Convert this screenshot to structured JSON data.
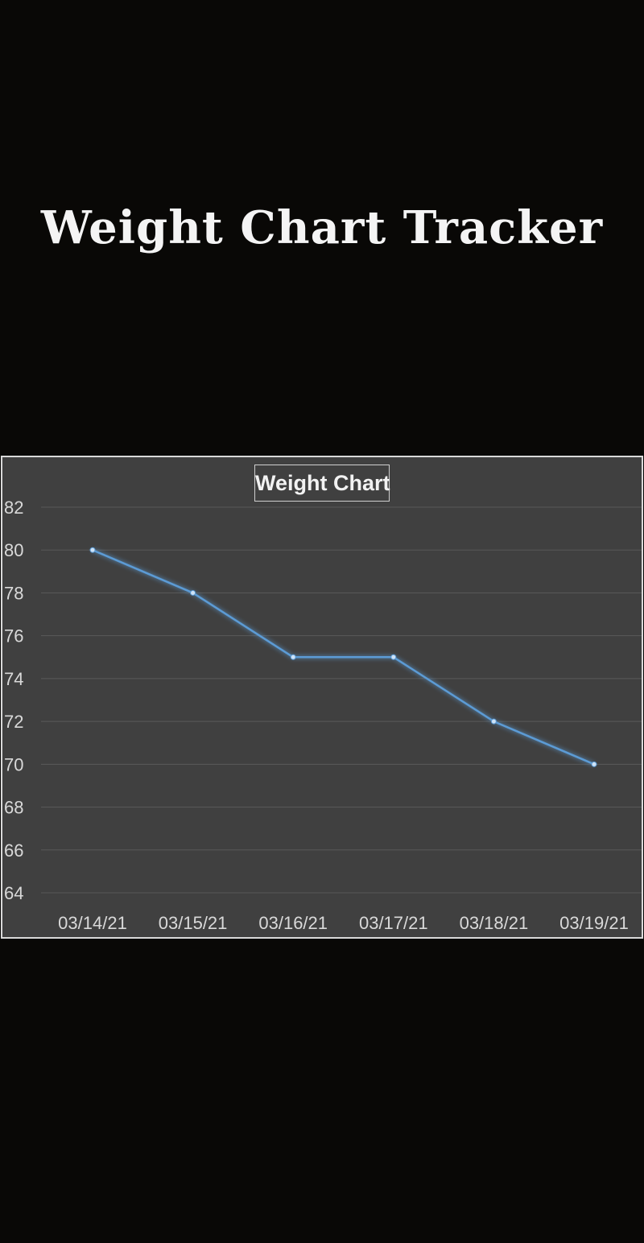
{
  "header": {
    "title": "Weight Chart Tracker"
  },
  "colors": {
    "background": "#090806",
    "plot_background": "#404040",
    "line": "#5b9bd5",
    "gridline": "#595959",
    "text": "#d9d9d9"
  },
  "chart_data": {
    "type": "line",
    "title": "Weight Chart",
    "xlabel": "",
    "ylabel": "",
    "categories": [
      "03/14/21",
      "03/15/21",
      "03/16/21",
      "03/17/21",
      "03/18/21",
      "03/19/21"
    ],
    "series": [
      {
        "values": [
          80,
          78,
          75,
          75,
          72,
          70
        ]
      }
    ],
    "ylim": [
      64,
      82
    ],
    "yticks": [
      82,
      80,
      78,
      76,
      74,
      72,
      70,
      68,
      66,
      64
    ],
    "grid": true,
    "legend": "none"
  }
}
